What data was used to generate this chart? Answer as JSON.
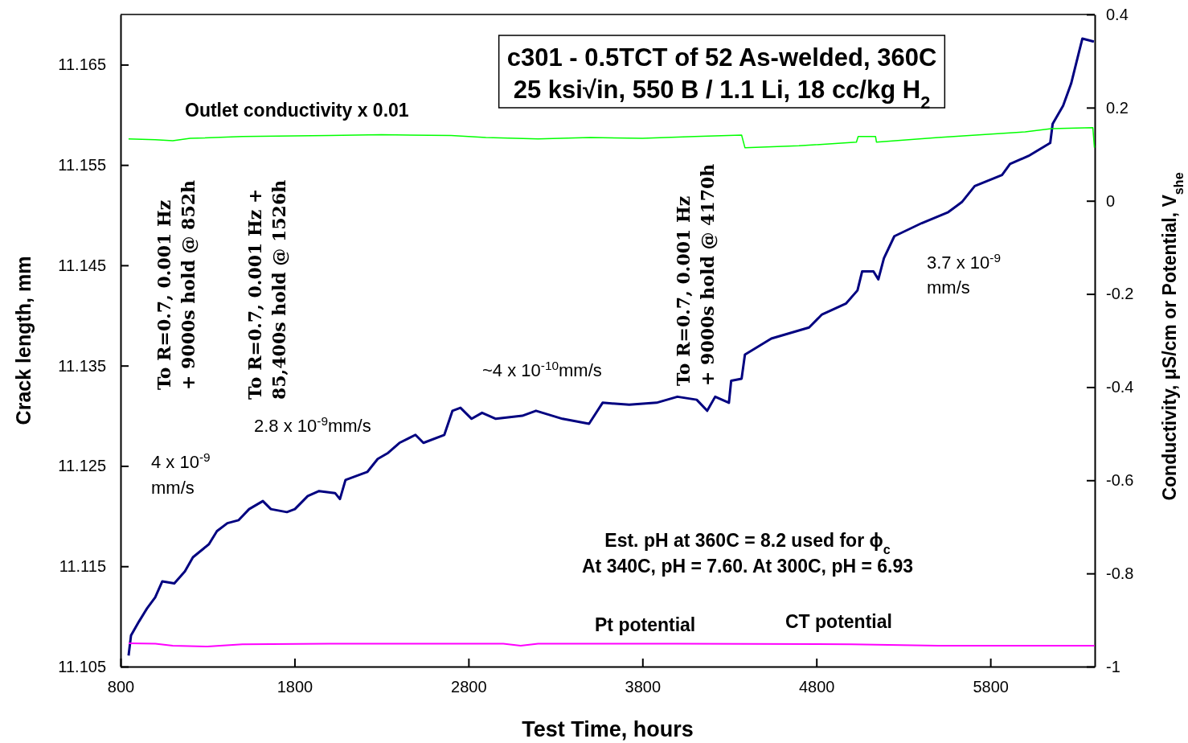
{
  "chart_data": {
    "type": "line",
    "title": "c301 - 0.5TCT of 52 As-welded, 360C",
    "subtitle": "25 ksi√in, 550 B / 1.1 Li, 18 cc/kg H$_{2}$",
    "xlabel": "Test Time, hours",
    "ylabel": "Crack length, mm",
    "y2label": "Conductivity, μS/cm or Potential, V$_{she}$",
    "xlim": [
      800,
      6400
    ],
    "xticks": [
      800,
      1800,
      2800,
      3800,
      4800,
      5800
    ],
    "ylim": [
      11.105,
      11.17
    ],
    "yticks": [
      11.105,
      11.115,
      11.125,
      11.135,
      11.145,
      11.155,
      11.165
    ],
    "y2lim": [
      -1,
      0.4
    ],
    "y2ticks": [
      -1,
      -0.8,
      -0.6,
      -0.4,
      -0.2,
      0,
      0.2,
      0.4
    ],
    "grid": false,
    "marker": "none",
    "line_style": "solid",
    "series": [
      {
        "color": "#000080",
        "x": [
          846,
          860,
          906,
          952,
          999,
          1040,
          1109,
          1170,
          1216,
          1308,
          1354,
          1414,
          1479,
          1539,
          1618,
          1664,
          1756,
          1802,
          1876,
          1941,
          2033,
          2061,
          2093,
          2218,
          2278,
          2338,
          2403,
          2495,
          2541,
          2661,
          2708,
          2754,
          2818,
          2878,
          2957,
          3109,
          3188,
          3340,
          3493,
          3571,
          3724,
          3881,
          4001,
          4112,
          4172,
          4218,
          4297,
          4310,
          4370,
          4389,
          4541,
          4758,
          4832,
          4971,
          5036,
          5063,
          5128,
          5156,
          5188,
          5248,
          5405,
          5558,
          5636,
          5710,
          5867,
          5913,
          6019,
          6144,
          6158,
          6218,
          6264,
          6310,
          6329,
          6395
        ],
        "values": [
          11.1061,
          11.1081,
          11.1095,
          11.1108,
          11.1119,
          11.1135,
          11.1133,
          11.1145,
          11.1159,
          11.1172,
          11.1185,
          11.1193,
          11.1196,
          11.1207,
          11.1215,
          11.1207,
          11.1204,
          11.1207,
          11.122,
          11.1225,
          11.1223,
          11.1217,
          11.1236,
          11.1244,
          11.1257,
          11.1263,
          11.1273,
          11.1281,
          11.1273,
          11.1281,
          11.1305,
          11.1308,
          11.1297,
          11.1303,
          11.1297,
          11.13,
          11.1305,
          11.1297,
          11.1292,
          11.1313,
          11.1311,
          11.1313,
          11.1319,
          11.1316,
          11.1305,
          11.1319,
          11.1313,
          11.1335,
          11.1337,
          11.1361,
          11.1377,
          11.1388,
          11.1401,
          11.1412,
          11.1425,
          11.1444,
          11.1444,
          11.1436,
          11.1457,
          11.1479,
          11.1492,
          11.1503,
          11.1513,
          11.1529,
          11.154,
          11.1551,
          11.1559,
          11.1572,
          11.1591,
          11.1609,
          11.1631,
          11.1663,
          11.1676,
          11.1673
        ]
      },
      {
        "name": "Outlet conductivity x 0.01",
        "color": "#00ff00",
        "axis": "y2",
        "x": [
          846,
          1000,
          1100,
          1200,
          1500,
          2000,
          2300,
          2700,
          2900,
          3200,
          3500,
          3800,
          4100,
          4370,
          4389,
          4700,
          5030,
          5040,
          5140,
          5145,
          5500,
          6000,
          6150,
          6389,
          6398
        ],
        "values": [
          0.133,
          0.131,
          0.129,
          0.134,
          0.138,
          0.14,
          0.142,
          0.14,
          0.136,
          0.133,
          0.136,
          0.134,
          0.138,
          0.141,
          0.114,
          0.118,
          0.126,
          0.138,
          0.138,
          0.126,
          0.136,
          0.148,
          0.155,
          0.157,
          0.114
        ]
      },
      {
        "name": "Pt potential",
        "color": "#ff00ff",
        "axis": "y2",
        "x": [
          846,
          1000,
          1100,
          1300,
          1500,
          2000,
          3000,
          3100,
          3200,
          4000,
          5000,
          5500,
          6398
        ],
        "values": [
          -0.95,
          -0.951,
          -0.955,
          -0.957,
          -0.952,
          -0.951,
          -0.951,
          -0.955,
          -0.951,
          -0.951,
          -0.952,
          -0.955,
          -0.955
        ]
      }
    ],
    "annotations": [
      "To R=0.7, 0.001 Hz\n+ 9000s hold @ 852h",
      "To R=0.7, 0.001 Hz +\n85,400s hold @ 1526h",
      "To R=0.7, 0.001 Hz\n+ 9000s hold @ 4170h",
      "4 x 10$^{-9}$\nmm/s",
      "2.8 x 10$^{-9}$mm/s",
      "~4 x 10$^{-10}$mm/s",
      "3.7 x 10$^{-9}$\nmm/s",
      "Est. pH at 360C = 8.2 used for ϕ$_{c}$\nAt 340C, pH = 7.60.   At 300C, pH = 6.93",
      "CT potential"
    ]
  }
}
